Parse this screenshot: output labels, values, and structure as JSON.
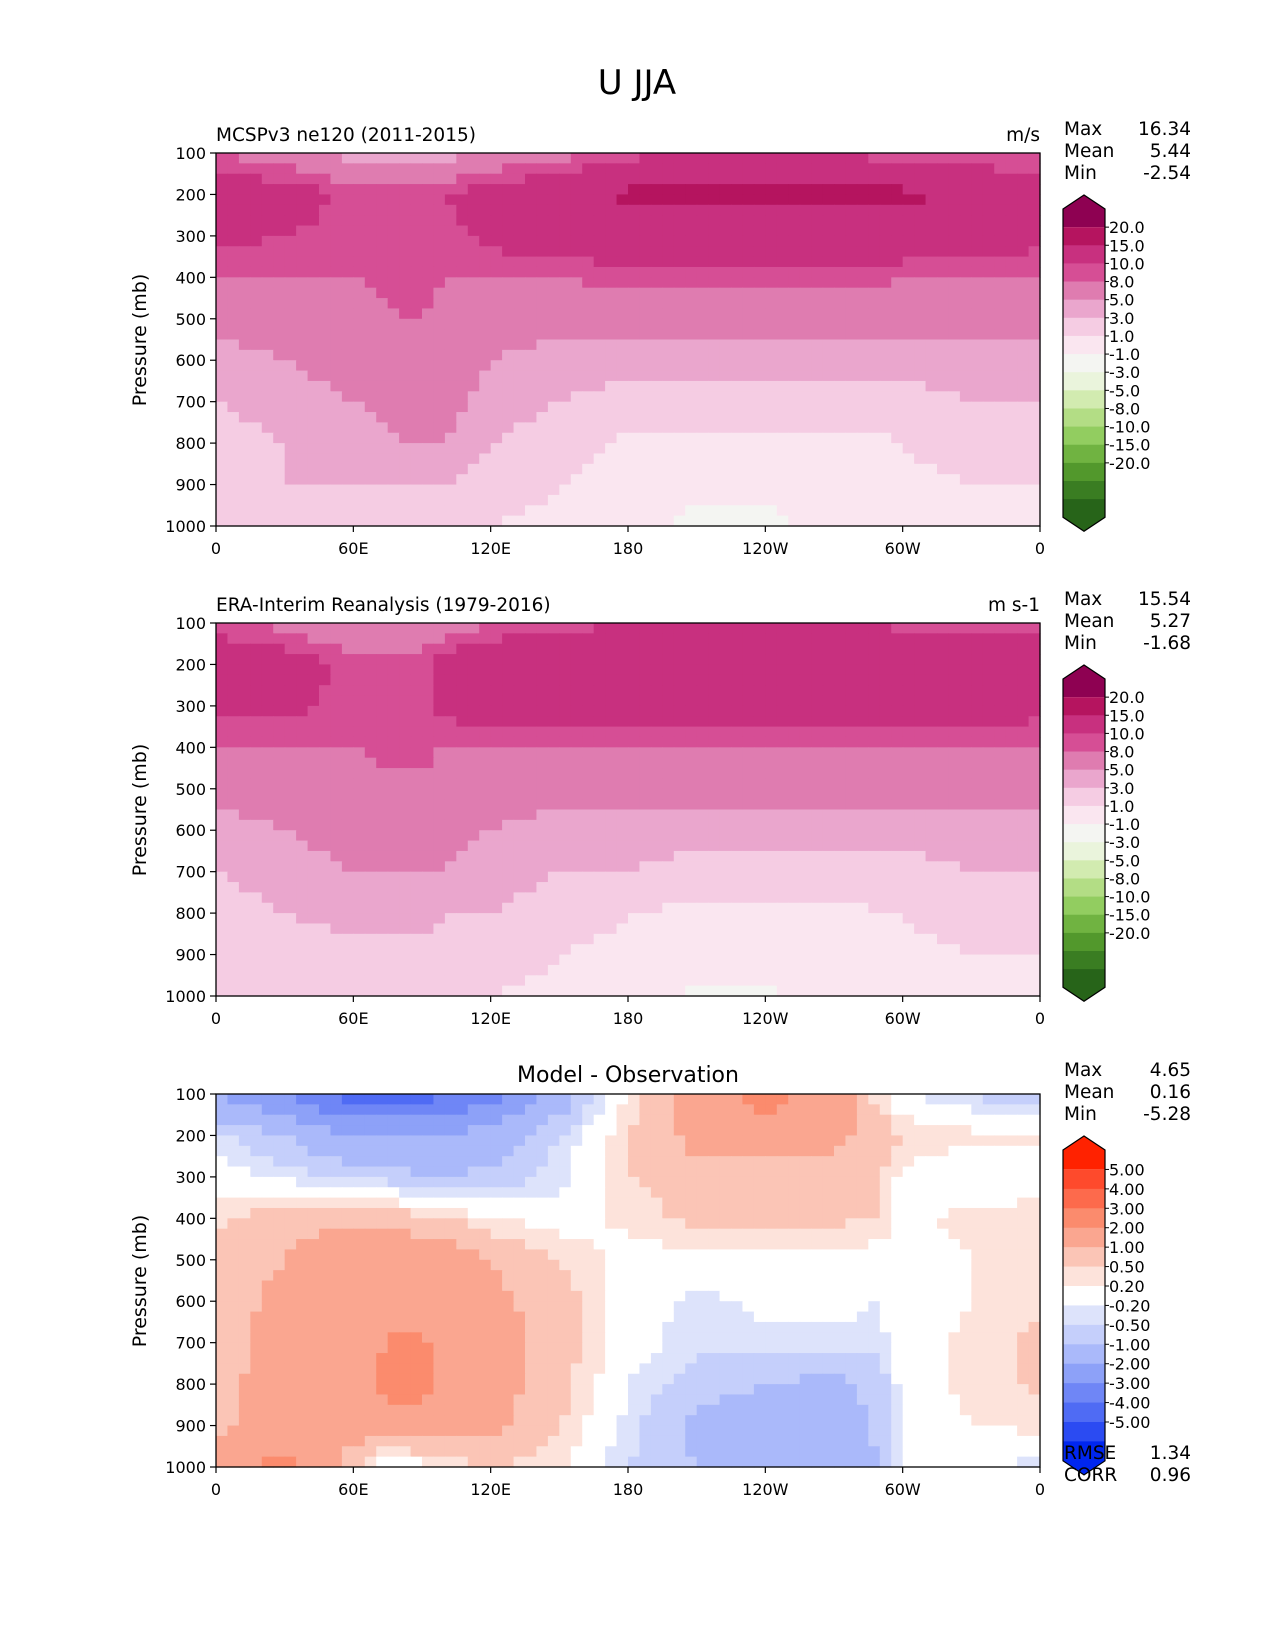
{
  "figure_title": "U JJA",
  "x_tick_labels": [
    "0",
    "60E",
    "120E",
    "180",
    "120W",
    "60W",
    "0"
  ],
  "y_tick_labels": [
    "100",
    "200",
    "300",
    "400",
    "500",
    "600",
    "700",
    "800",
    "900",
    "1000"
  ],
  "colorbars": {
    "field": {
      "labels": [
        "20.0",
        "15.0",
        "10.0",
        "8.0",
        "5.0",
        "3.0",
        "1.0",
        "-1.0",
        "-3.0",
        "-5.0",
        "-8.0",
        "-10.0",
        "-15.0",
        "-20.0"
      ],
      "colors": [
        "#8e0152",
        "#b5145f",
        "#c8307f",
        "#d64e95",
        "#df7cb0",
        "#eaa6cd",
        "#f5cce3",
        "#fae6f0",
        "#f4f5f2",
        "#eaf4dc",
        "#d2ebb0",
        "#b3dd85",
        "#92cd60",
        "#70b341",
        "#52982c",
        "#3a7d22",
        "#276419"
      ]
    },
    "diff": {
      "labels": [
        "5.00",
        "4.00",
        "3.00",
        "2.00",
        "1.00",
        "0.50",
        "0.20",
        "-0.20",
        "-0.50",
        "-1.00",
        "-2.00",
        "-3.00",
        "-4.00",
        "-5.00"
      ],
      "colors": [
        "#ff2200",
        "#fe4a2c",
        "#fd6a4c",
        "#fb8b6d",
        "#faa690",
        "#fbc5b6",
        "#fde3db",
        "#ffffff",
        "#dde3fb",
        "#c5cffb",
        "#aab9fa",
        "#8da1f8",
        "#6f86f6",
        "#4f6bf4",
        "#2b4bf2",
        "#0026ef"
      ]
    }
  },
  "panels": [
    {
      "title_left": "MCSPv3 ne120 (2011-2015)",
      "title_center": "",
      "units": "m/s",
      "ylabel": "Pressure (mb)",
      "stats": [
        {
          "label": "Max",
          "value": "16.34"
        },
        {
          "label": "Mean",
          "value": "5.44"
        },
        {
          "label": "Min",
          "value": "-2.54"
        }
      ],
      "footer_stats": [],
      "colorbar": "field"
    },
    {
      "title_left": "ERA-Interim Reanalysis (1979-2016)",
      "title_center": "",
      "units": "m s-1",
      "ylabel": "Pressure (mb)",
      "stats": [
        {
          "label": "Max",
          "value": "15.54"
        },
        {
          "label": "Mean",
          "value": "5.27"
        },
        {
          "label": "Min",
          "value": "-1.68"
        }
      ],
      "footer_stats": [],
      "colorbar": "field"
    },
    {
      "title_left": "",
      "title_center": "Model - Observation",
      "units": "",
      "ylabel": "Pressure (mb)",
      "stats": [
        {
          "label": "Max",
          "value": "4.65"
        },
        {
          "label": "Mean",
          "value": "0.16"
        },
        {
          "label": "Min",
          "value": "-5.28"
        }
      ],
      "footer_stats": [
        {
          "label": "RMSE",
          "value": "1.34"
        },
        {
          "label": "CORR",
          "value": "0.96"
        }
      ],
      "colorbar": "diff"
    }
  ],
  "chart_data": [
    {
      "type": "heatmap",
      "title": "MCSPv3 ne120 (2011-2015)",
      "units": "m/s",
      "xlabel": "",
      "ylabel": "Pressure (mb)",
      "xlim": [
        0,
        360
      ],
      "ylim": [
        1000,
        100
      ],
      "x": [
        0,
        30,
        60,
        80,
        90,
        100,
        120,
        150,
        180,
        210,
        240,
        270,
        290,
        300,
        330,
        360
      ],
      "y": [
        100,
        200,
        300,
        400,
        500,
        600,
        700,
        800,
        900,
        1000
      ],
      "z": [
        [
          8,
          6,
          4,
          3,
          3,
          4,
          5,
          7,
          9,
          10,
          10,
          10,
          9,
          9,
          8,
          8
        ],
        [
          12,
          12,
          9,
          9,
          9,
          10,
          12,
          13,
          16,
          16,
          16,
          16,
          16,
          16,
          14,
          12
        ],
        [
          11,
          10,
          9,
          9,
          9,
          9,
          11,
          12,
          13,
          13,
          13,
          13,
          13,
          13,
          12,
          11
        ],
        [
          8,
          8,
          8,
          9,
          9,
          8,
          8,
          8,
          9,
          9,
          9,
          9,
          9,
          8,
          8,
          8
        ],
        [
          6,
          6,
          7,
          8,
          8,
          7,
          6,
          6,
          6,
          6,
          6,
          6,
          6,
          6,
          6,
          6
        ],
        [
          4,
          5,
          6,
          7,
          7,
          7,
          5,
          4,
          4,
          4,
          4,
          4,
          4,
          4,
          4,
          4
        ],
        [
          3,
          4,
          5,
          6,
          6,
          6,
          4,
          3,
          2,
          2,
          2,
          2,
          2,
          2,
          3,
          3
        ],
        [
          2,
          3,
          4,
          5,
          5,
          5,
          3,
          2,
          0.5,
          0.5,
          0.5,
          0.5,
          0.5,
          1,
          2,
          2
        ],
        [
          2,
          3,
          3,
          3,
          3,
          3,
          2,
          1,
          0,
          -0.5,
          -0.5,
          0,
          0.5,
          0.5,
          1,
          1
        ],
        [
          2,
          2,
          1,
          1,
          1,
          1,
          1,
          0.5,
          0,
          -1.5,
          -1.5,
          -0.5,
          0,
          0,
          0,
          0
        ]
      ]
    },
    {
      "type": "heatmap",
      "title": "ERA-Interim Reanalysis (1979-2016)",
      "units": "m s-1",
      "xlabel": "",
      "ylabel": "Pressure (mb)",
      "xlim": [
        0,
        360
      ],
      "ylim": [
        1000,
        100
      ],
      "x": [
        0,
        30,
        60,
        80,
        90,
        100,
        120,
        150,
        180,
        210,
        240,
        270,
        290,
        300,
        330,
        360
      ],
      "y": [
        100,
        200,
        300,
        400,
        500,
        600,
        700,
        800,
        900,
        1000
      ],
      "z": [
        [
          9,
          7,
          5,
          5,
          5,
          6,
          8,
          9,
          10,
          10,
          10,
          10,
          10,
          9,
          9,
          9
        ],
        [
          12,
          12,
          9,
          9,
          9,
          12,
          13,
          13,
          15,
          15,
          13,
          13,
          13,
          15,
          13,
          12
        ],
        [
          11,
          11,
          9,
          9,
          9,
          11,
          12,
          12,
          13,
          13,
          12,
          12,
          12,
          12,
          12,
          11
        ],
        [
          8,
          8,
          8,
          9,
          9,
          8,
          8,
          8,
          8,
          8,
          8,
          8,
          8,
          8,
          8,
          8
        ],
        [
          6,
          6,
          7,
          7,
          7,
          6,
          6,
          6,
          6,
          6,
          6,
          6,
          6,
          6,
          6,
          6
        ],
        [
          4,
          5,
          6,
          7,
          6,
          6,
          5,
          4,
          4,
          4,
          4,
          4,
          4,
          4,
          4,
          4
        ],
        [
          3,
          4,
          5,
          5,
          5,
          5,
          4,
          3,
          3,
          2,
          2,
          2,
          2,
          2,
          3,
          3
        ],
        [
          2,
          3,
          4,
          4,
          4,
          3,
          3,
          2,
          1,
          0.5,
          0.5,
          0.5,
          1,
          1,
          2,
          2
        ],
        [
          2,
          2,
          2,
          2,
          2,
          2,
          2,
          1,
          0.5,
          0,
          0,
          0,
          0.5,
          0.5,
          1,
          1
        ],
        [
          2,
          2,
          1,
          1,
          1,
          1,
          1,
          0.5,
          0,
          -1.5,
          -1.5,
          0,
          0,
          0,
          0,
          0
        ]
      ]
    },
    {
      "type": "heatmap",
      "title": "Model - Observation",
      "xlabel": "",
      "ylabel": "Pressure (mb)",
      "xlim": [
        0,
        360
      ],
      "ylim": [
        1000,
        100
      ],
      "x": [
        0,
        30,
        60,
        80,
        90,
        100,
        120,
        150,
        180,
        210,
        240,
        270,
        290,
        300,
        330,
        360
      ],
      "y": [
        100,
        200,
        300,
        400,
        500,
        600,
        700,
        800,
        900,
        1000
      ],
      "z": [
        [
          -2,
          -3,
          -4.5,
          -4.5,
          -4.5,
          -4,
          -3.5,
          -1.5,
          0.3,
          1.5,
          2.5,
          1.5,
          0.3,
          -0.2,
          -0.5,
          -1
        ],
        [
          -0.3,
          -1,
          -2,
          -2,
          -2,
          -2,
          -1.5,
          -0.5,
          0.5,
          1.2,
          1.5,
          1.2,
          0.8,
          0.5,
          0.3,
          0.3
        ],
        [
          0,
          -0.3,
          -0.5,
          -0.8,
          -1,
          -1,
          -0.8,
          -0.3,
          0.5,
          0.8,
          0.6,
          0.7,
          0.5,
          0.1,
          -0.2,
          0
        ],
        [
          0.4,
          0.8,
          0.9,
          0.8,
          0.6,
          0.5,
          0.2,
          0,
          0.3,
          0.6,
          0.6,
          0.6,
          0.5,
          0.1,
          0.3,
          0.4
        ],
        [
          0.6,
          1,
          1.5,
          1.5,
          1.5,
          1.5,
          1,
          0.5,
          0,
          0.1,
          0.1,
          0.1,
          0,
          0,
          0.2,
          0.4
        ],
        [
          0.7,
          1.2,
          1.5,
          1.5,
          1.5,
          1.5,
          1.2,
          0.7,
          0,
          -0.3,
          -0.1,
          -0.1,
          -0.2,
          0,
          0.2,
          0.4
        ],
        [
          0.7,
          1.3,
          1.6,
          2.2,
          2.2,
          1.6,
          1.3,
          0.7,
          0,
          -0.4,
          -0.3,
          -0.3,
          -0.3,
          0,
          0.3,
          0.6
        ],
        [
          0.8,
          1.3,
          1.6,
          2.5,
          2.5,
          1.6,
          1.3,
          0.7,
          -0.2,
          -0.7,
          -1,
          -1.2,
          -0.8,
          0,
          0.3,
          0.6
        ],
        [
          0.8,
          1.3,
          1.5,
          1.5,
          1.4,
          1.4,
          1.2,
          0.5,
          -0.3,
          -1.2,
          -1.5,
          -1.5,
          -0.8,
          0,
          0.2,
          0.3
        ],
        [
          1.5,
          2.5,
          0.5,
          -0.5,
          0.2,
          0.3,
          0.5,
          0.3,
          -0.5,
          -1,
          -1.5,
          -2,
          -1,
          0,
          -0.2,
          -0.3
        ]
      ]
    }
  ]
}
